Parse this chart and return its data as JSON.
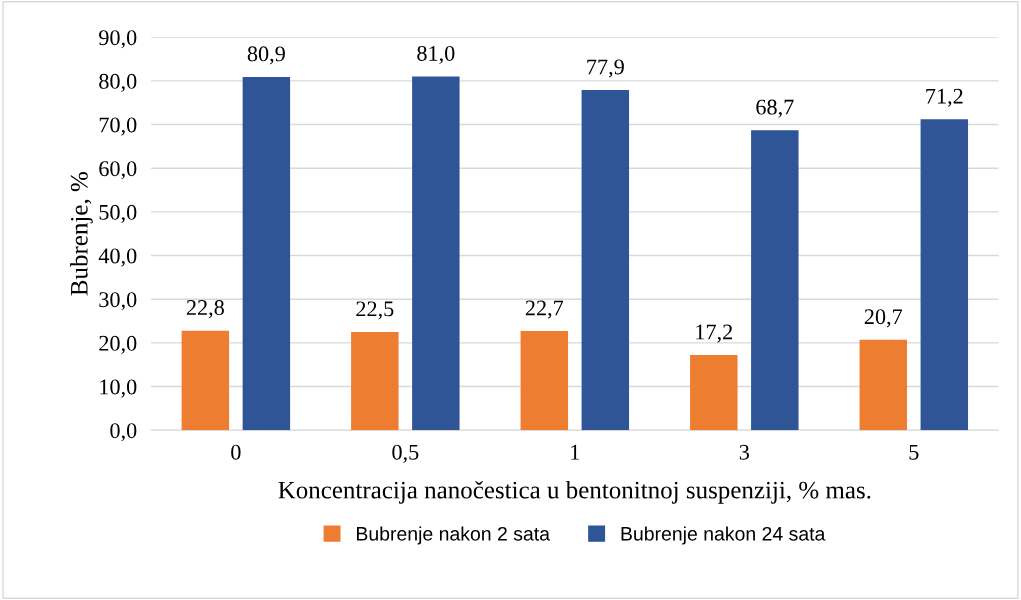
{
  "chart_data": {
    "type": "bar",
    "xlabel": "Koncentracija nanočestica u bentonitnoj suspenziji, % mas.",
    "ylabel": "Bubrenje, %",
    "categories": [
      "0",
      "0,5",
      "1",
      "3",
      "5"
    ],
    "series": [
      {
        "name": "Bubrenje nakon 2 sata",
        "color": "#ed7d31",
        "values": [
          22.8,
          22.5,
          22.7,
          17.2,
          20.7
        ],
        "value_labels": [
          "22,8",
          "22,5",
          "22,7",
          "17,2",
          "20,7"
        ]
      },
      {
        "name": "Bubrenje nakon 24 sata",
        "color": "#2f5597",
        "values": [
          80.9,
          81.0,
          77.9,
          68.7,
          71.2
        ],
        "value_labels": [
          "80,9",
          "81,0",
          "77,9",
          "68,7",
          "71,2"
        ]
      }
    ],
    "ylim": [
      0,
      90
    ],
    "yticks": [
      {
        "value": 0,
        "label": "0,0"
      },
      {
        "value": 10,
        "label": "10,0"
      },
      {
        "value": 20,
        "label": "20,0"
      },
      {
        "value": 30,
        "label": "30,0"
      },
      {
        "value": 40,
        "label": "40,0"
      },
      {
        "value": 50,
        "label": "50,0"
      },
      {
        "value": 60,
        "label": "60,0"
      },
      {
        "value": 70,
        "label": "70,0"
      },
      {
        "value": 80,
        "label": "80,0"
      },
      {
        "value": 90,
        "label": "90,0"
      }
    ],
    "grid": "y",
    "legend": "bottom"
  }
}
